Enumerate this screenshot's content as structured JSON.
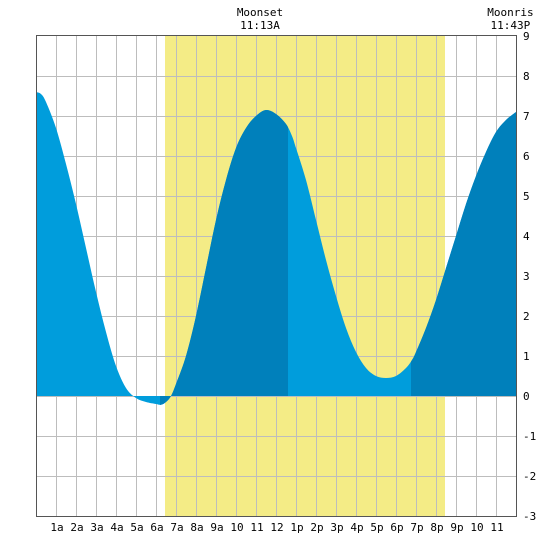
{
  "chart_data": {
    "type": "area",
    "x_tick_labels": [
      "1a",
      "2a",
      "3a",
      "4a",
      "5a",
      "6a",
      "7a",
      "8a",
      "9a",
      "10",
      "11",
      "12",
      "1p",
      "2p",
      "3p",
      "4p",
      "5p",
      "6p",
      "7p",
      "8p",
      "9p",
      "10",
      "11"
    ],
    "y_tick_labels": [
      "9",
      "8",
      "7",
      "6",
      "5",
      "4",
      "3",
      "2",
      "1",
      "0",
      "-1",
      "-2",
      "-3"
    ],
    "ylim": [
      -3,
      9
    ],
    "xlim_hours": [
      0,
      24
    ],
    "x_hours": [
      0,
      0.25,
      0.5,
      1,
      1.5,
      2,
      2.5,
      3,
      3.5,
      4,
      4.5,
      5,
      5.5,
      6,
      6.25,
      6.5,
      6.75,
      7,
      7.5,
      8,
      8.5,
      9,
      9.5,
      10,
      10.5,
      11,
      11.5,
      12,
      12.5,
      12.8,
      13,
      13.5,
      14,
      14.5,
      15,
      15.5,
      16,
      16.5,
      17,
      17.5,
      18,
      18.5,
      18.8,
      19,
      19.5,
      20,
      20.5,
      21,
      21.5,
      22,
      22.5,
      23,
      23.5,
      24
    ],
    "tide_ft": [
      7.6,
      7.55,
      7.35,
      6.7,
      5.8,
      4.8,
      3.7,
      2.6,
      1.6,
      0.75,
      0.2,
      -0.05,
      -0.15,
      -0.2,
      -0.22,
      -0.15,
      0.0,
      0.3,
      1.0,
      2.0,
      3.2,
      4.4,
      5.4,
      6.2,
      6.7,
      7.0,
      7.15,
      7.05,
      6.8,
      6.5,
      6.2,
      5.4,
      4.4,
      3.4,
      2.5,
      1.7,
      1.1,
      0.7,
      0.5,
      0.45,
      0.5,
      0.7,
      0.9,
      1.1,
      1.7,
      2.4,
      3.2,
      4.0,
      4.8,
      5.5,
      6.1,
      6.6,
      6.9,
      7.1
    ],
    "rising_intervals_hours": [
      [
        6.2,
        12.6
      ],
      [
        18.75,
        24
      ]
    ],
    "daylight_hours": [
      6.45,
      20.45
    ],
    "colors": {
      "falling": "#009ddc",
      "rising": "#0080bb",
      "daylight": "#f4ec86",
      "grid": "#bdbdbd"
    },
    "annotations": [
      {
        "title": "Moonset",
        "time": "11:13A",
        "hour": 11.2
      },
      {
        "title": "Moonris",
        "time": "11:43P",
        "hour": 23.72
      }
    ]
  }
}
